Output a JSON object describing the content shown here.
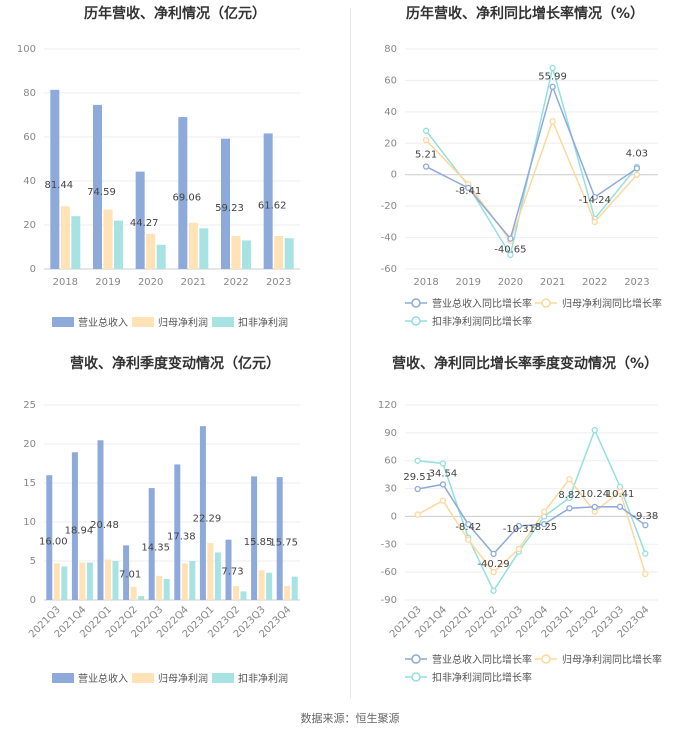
{
  "colors": {
    "revenue": "#8eaadb",
    "parent": "#ffe2b5",
    "deduct": "#a8e3e3",
    "axis": "#cccccc",
    "grid": "#eeeeee"
  },
  "footer": "数据来源：恒生聚源",
  "chart_data": [
    {
      "type": "bar",
      "title": "历年营收、净利情况（亿元）",
      "categories": [
        "2018",
        "2019",
        "2020",
        "2021",
        "2022",
        "2023"
      ],
      "ylim": [
        0,
        100
      ],
      "yticks": [
        0,
        20,
        40,
        60,
        80,
        100
      ],
      "series": [
        {
          "name": "营业总收入",
          "values": [
            81.44,
            74.59,
            44.27,
            69.06,
            59.23,
            61.62
          ],
          "labeled": true
        },
        {
          "name": "归母净利润",
          "values": [
            28.5,
            27.0,
            16.0,
            21.0,
            15.0,
            15.0
          ]
        },
        {
          "name": "扣非净利润",
          "values": [
            24.0,
            22.0,
            11.0,
            18.5,
            13.0,
            14.0
          ]
        }
      ]
    },
    {
      "type": "line",
      "title": "历年营收、净利同比增长率情况（%）",
      "categories": [
        "2018",
        "2019",
        "2020",
        "2021",
        "2022",
        "2023"
      ],
      "ylim": [
        -60,
        80
      ],
      "yticks": [
        -60,
        -40,
        -20,
        0,
        20,
        40,
        60,
        80
      ],
      "series": [
        {
          "name": "营业总收入同比增长率",
          "values": [
            5.21,
            -8.41,
            -40.65,
            55.99,
            -14.24,
            4.03
          ],
          "labeled": true
        },
        {
          "name": "归母净利润同比增长率",
          "values": [
            22,
            -6,
            -42,
            34,
            -30,
            0
          ]
        },
        {
          "name": "扣非净利润同比增长率",
          "values": [
            28,
            -7,
            -51,
            68,
            -28,
            5
          ]
        }
      ]
    },
    {
      "type": "bar",
      "title": "营收、净利季度变动情况（亿元）",
      "categories": [
        "2021Q3",
        "2021Q4",
        "2022Q1",
        "2022Q2",
        "2022Q3",
        "2022Q4",
        "2023Q1",
        "2023Q2",
        "2023Q3",
        "2023Q4"
      ],
      "ylim": [
        0,
        25
      ],
      "yticks": [
        0,
        5,
        10,
        15,
        20,
        25
      ],
      "series": [
        {
          "name": "营业总收入",
          "values": [
            16.0,
            18.94,
            20.48,
            7.01,
            14.35,
            17.38,
            22.29,
            7.73,
            15.85,
            15.75
          ],
          "labeled": true,
          "labels": [
            "16.00",
            "18.94",
            "20.48",
            "7.01",
            "14.35",
            "17.38",
            "22.29",
            "7.73",
            "15.85",
            "15.75"
          ]
        },
        {
          "name": "归母净利润",
          "values": [
            4.7,
            4.8,
            5.2,
            1.7,
            3.1,
            4.7,
            7.3,
            1.8,
            3.8,
            1.8
          ]
        },
        {
          "name": "扣非净利润",
          "values": [
            4.3,
            4.8,
            5.0,
            0.5,
            2.7,
            5.0,
            6.1,
            1.1,
            3.5,
            3.0
          ]
        }
      ]
    },
    {
      "type": "line",
      "title": "营收、净利同比增长率季度变动情况（%）",
      "categories": [
        "2021Q3",
        "2021Q4",
        "2022Q1",
        "2022Q2",
        "2022Q3",
        "2022Q4",
        "2023Q1",
        "2023Q2",
        "2023Q3",
        "2023Q4"
      ],
      "ylim": [
        -90,
        120
      ],
      "yticks": [
        -90,
        -60,
        -30,
        0,
        30,
        60,
        90,
        120
      ],
      "series": [
        {
          "name": "营业总收入同比增长率",
          "values": [
            29.51,
            34.54,
            -8.42,
            -40.29,
            -10.31,
            -8.25,
            8.82,
            10.24,
            10.41,
            -9.38
          ],
          "labeled": true
        },
        {
          "name": "归母净利润同比增长率",
          "values": [
            2,
            17,
            -25,
            -60,
            -35,
            5,
            40,
            5,
            27,
            -62
          ]
        },
        {
          "name": "扣非净利润同比增长率",
          "values": [
            60,
            57,
            -23,
            -80,
            -38,
            0,
            20,
            93,
            32,
            -40
          ]
        }
      ]
    }
  ]
}
